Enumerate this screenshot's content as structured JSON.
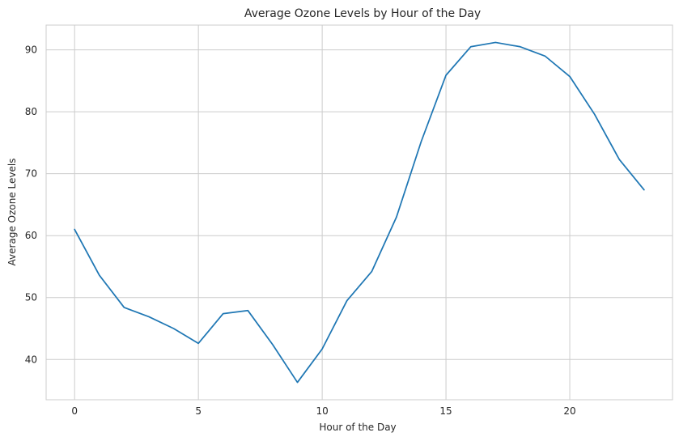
{
  "chart_data": {
    "type": "line",
    "title": "Average Ozone Levels by Hour of the Day",
    "xlabel": "Hour of the Day",
    "ylabel": "Average Ozone Levels",
    "x": [
      0,
      1,
      2,
      3,
      4,
      5,
      6,
      7,
      8,
      9,
      10,
      11,
      12,
      13,
      14,
      15,
      16,
      17,
      18,
      19,
      20,
      21,
      22,
      23
    ],
    "series": [
      {
        "values": [
          61.0,
          53.6,
          48.4,
          46.9,
          45.0,
          42.6,
          47.4,
          47.9,
          42.4,
          36.3,
          41.7,
          49.5,
          54.2,
          63.0,
          75.2,
          85.9,
          90.5,
          91.2,
          90.5,
          89.0,
          85.7,
          79.6,
          72.3,
          67.4
        ],
        "color": "#1f77b4"
      }
    ],
    "xlim": [
      -1.15,
      24.15
    ],
    "ylim": [
      33.5,
      94.0
    ],
    "xticks": [
      0,
      5,
      10,
      15,
      20
    ],
    "yticks": [
      40,
      50,
      60,
      70,
      80,
      90
    ],
    "xtick_labels": [
      "0",
      "5",
      "10",
      "15",
      "20"
    ],
    "ytick_labels": [
      "40",
      "50",
      "60",
      "70",
      "80",
      "90"
    ],
    "grid": true,
    "legend": "none"
  }
}
